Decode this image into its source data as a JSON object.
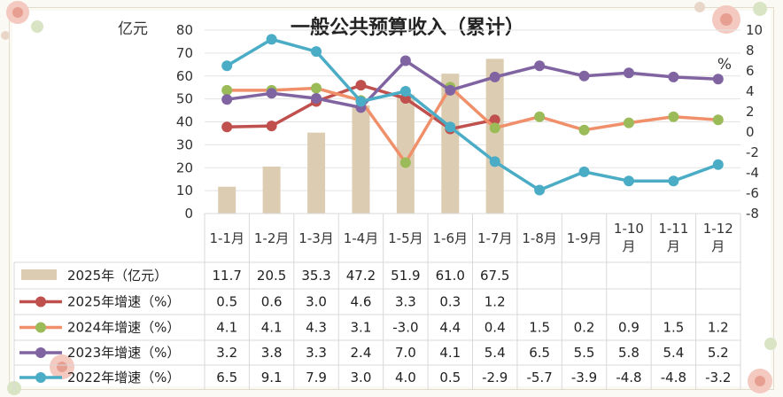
{
  "chart_data": {
    "type": "bar+line",
    "title": "一般公共预算收入（累计）",
    "left_unit": "亿元",
    "right_unit": "%",
    "left_ylim": [
      0,
      80
    ],
    "left_ticks": [
      "0",
      "10",
      "20",
      "30",
      "40",
      "50",
      "60",
      "70",
      "80"
    ],
    "right_ylim": [
      -8,
      10
    ],
    "right_ticks": [
      "-8",
      "-6",
      "-4",
      "-2",
      "0",
      "2",
      "4",
      "6",
      "8",
      "10"
    ],
    "categories": [
      [
        "1-1月"
      ],
      [
        "1-2月"
      ],
      [
        "1-3月"
      ],
      [
        "1-4月"
      ],
      [
        "1-5月"
      ],
      [
        "1-6月"
      ],
      [
        "1-7月"
      ],
      [
        "1-8月"
      ],
      [
        "1-9月"
      ],
      [
        "1-10",
        "月"
      ],
      [
        "1-11",
        "月"
      ],
      [
        "1-12",
        "月"
      ]
    ],
    "bar_series": {
      "name": "2025年（亿元）",
      "color": "#dccdb2",
      "values": [
        11.7,
        20.5,
        35.3,
        47.2,
        51.9,
        61.0,
        67.5,
        null,
        null,
        null,
        null,
        null
      ],
      "labels": [
        "11.7",
        "20.5",
        "35.3",
        "47.2",
        "51.9",
        "61.0",
        "67.5",
        "",
        "",
        "",
        "",
        ""
      ]
    },
    "line_series": [
      {
        "name": "2025年增速（%）",
        "color": "#c0504d",
        "values": [
          0.5,
          0.6,
          3.0,
          4.6,
          3.3,
          0.3,
          1.2,
          null,
          null,
          null,
          null,
          null
        ],
        "labels": [
          "0.5",
          "0.6",
          "3.0",
          "4.6",
          "3.3",
          "0.3",
          "1.2",
          "",
          "",
          "",
          "",
          ""
        ]
      },
      {
        "name": "2024年增速（%）",
        "color": "#f0906a",
        "marker": "#9bbb59",
        "values": [
          4.1,
          4.1,
          4.3,
          3.1,
          -3.0,
          4.4,
          0.4,
          1.5,
          0.2,
          0.9,
          1.5,
          1.2
        ],
        "labels": [
          "4.1",
          "4.1",
          "4.3",
          "3.1",
          "-3.0",
          "4.4",
          "0.4",
          "1.5",
          "0.2",
          "0.9",
          "1.5",
          "1.2"
        ]
      },
      {
        "name": "2023年增速（%）",
        "color": "#8064a2",
        "values": [
          3.2,
          3.8,
          3.3,
          2.4,
          7.0,
          4.1,
          5.4,
          6.5,
          5.5,
          5.8,
          5.4,
          5.2
        ],
        "labels": [
          "3.2",
          "3.8",
          "3.3",
          "2.4",
          "7.0",
          "4.1",
          "5.4",
          "6.5",
          "5.5",
          "5.8",
          "5.4",
          "5.2"
        ]
      },
      {
        "name": "2022年增速（%）",
        "color": "#4bacc6",
        "values": [
          6.5,
          9.1,
          7.9,
          3.0,
          4.0,
          0.5,
          -2.9,
          -5.7,
          -3.9,
          -4.8,
          -4.8,
          -3.2
        ],
        "labels": [
          "6.5",
          "9.1",
          "7.9",
          "3.0",
          "4.0",
          "0.5",
          "-2.9",
          "-5.7",
          "-3.9",
          "-4.8",
          "-4.8",
          "-3.2"
        ]
      }
    ],
    "grid": true,
    "legend": "data-table-left"
  }
}
